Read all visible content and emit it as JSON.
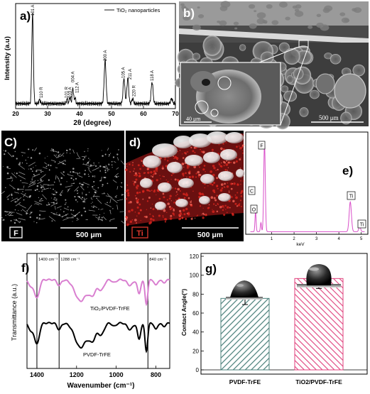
{
  "figure": {
    "a": {
      "label": "a)",
      "legend": "TiO₂ nanoparticles",
      "xlabel": "2θ (degree)",
      "ylabel": "Intensity (a.u)",
      "xticks": [
        "20",
        "30",
        "40",
        "50",
        "60",
        "70"
      ],
      "peaks": [
        {
          "text": "101 A",
          "x": 25.3
        },
        {
          "text": "110 R",
          "x": 27.5
        },
        {
          "text": "101 R",
          "x": 36.1
        },
        {
          "text": "103 A",
          "x": 37.0
        },
        {
          "text": "004 A",
          "x": 37.9
        },
        {
          "text": "112 A",
          "x": 38.6
        },
        {
          "text": "200 A",
          "x": 48.0
        },
        {
          "text": "105 A",
          "x": 53.9
        },
        {
          "text": "211 A",
          "x": 55.1
        },
        {
          "text": "220 R",
          "x": 56.6
        },
        {
          "text": "118 A",
          "x": 62.7
        }
      ]
    },
    "b": {
      "label": "b)",
      "scale_inset": "40 μm",
      "scale_main": "500 μm"
    },
    "c": {
      "label": "C)",
      "element": "F",
      "scale": "500 μm"
    },
    "d": {
      "label": "d)",
      "element": "Ti",
      "scale": "500 μm"
    },
    "e": {
      "label": "e)",
      "xlabel": "keV",
      "xticks": [
        "1",
        "2",
        "3",
        "4",
        "5"
      ],
      "peaks": [
        {
          "text": "C",
          "x": 0.28
        },
        {
          "text": "O",
          "x": 0.52
        },
        {
          "text": "F",
          "x": 0.68
        },
        {
          "text": "Ti",
          "x": 4.51
        },
        {
          "text": "Ti",
          "x": 4.93
        }
      ]
    },
    "f": {
      "label": "f)",
      "xlabel": "Wavenumber (cm⁻¹)",
      "ylabel": "Transmittance (a.u.)",
      "xticks": [
        "1400",
        "1200",
        "1000",
        "800"
      ],
      "vlines": [
        {
          "text": "1400 cm⁻¹",
          "x": 1400
        },
        {
          "text": "1288 cm⁻¹",
          "x": 1288
        },
        {
          "text": "840 cm⁻¹",
          "x": 840
        }
      ],
      "series": [
        {
          "name": "TiO₂/PVDF-TrFE",
          "color": "#d97fd0"
        },
        {
          "name": "PVDF-TrFE",
          "color": "#000000"
        }
      ]
    },
    "g": {
      "label": "g)",
      "ylabel": "Contact Angle(°)",
      "yticks": [
        "0",
        "20",
        "40",
        "60",
        "80",
        "100",
        "120"
      ]
    }
  },
  "chart_data": [
    {
      "type": "bar",
      "categories": [
        "PVDF-TrFE",
        "TiO2/PVDF-TrFE"
      ],
      "values": [
        75.5,
        96.5
      ],
      "errors": [
        6.5,
        10.5
      ],
      "ylabel": "Contact Angle(°)",
      "ylim": [
        0,
        120
      ],
      "colors": [
        "#4a7f7a",
        "#e0427d"
      ]
    }
  ]
}
